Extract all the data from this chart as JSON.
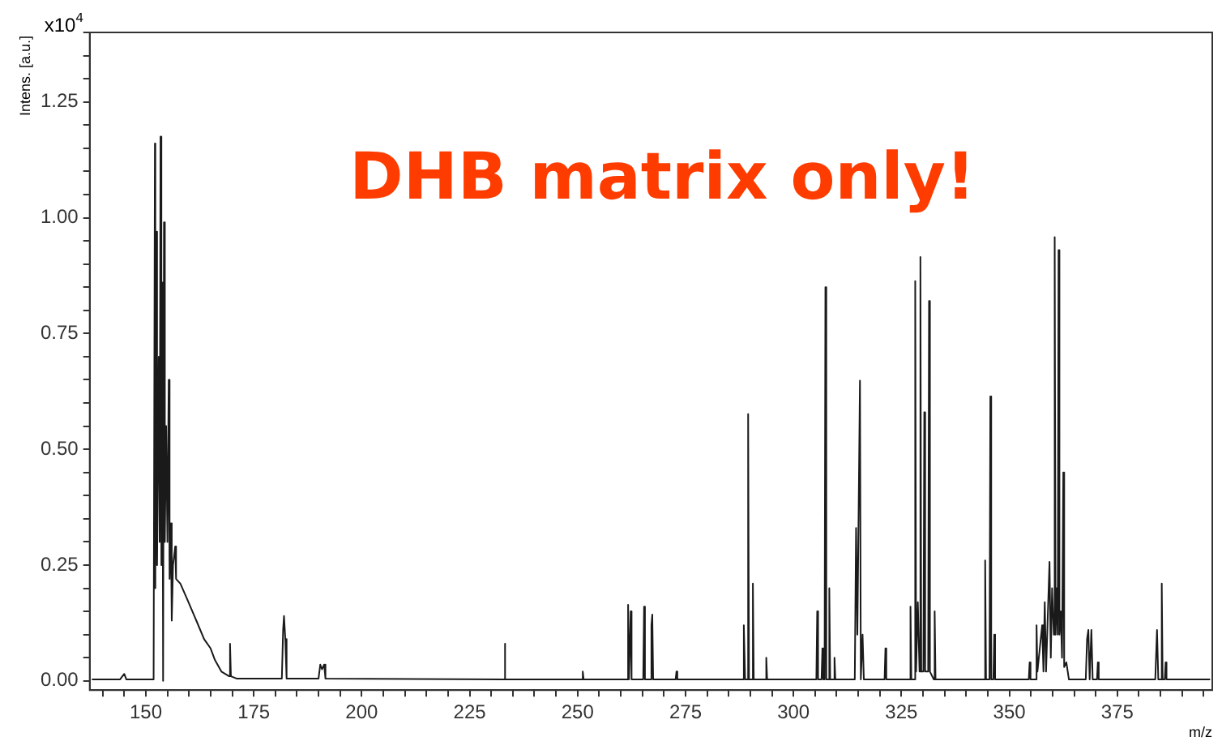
{
  "chart_data": {
    "type": "line",
    "xlabel": "m/z",
    "ylabel": "Intens. [a.u.]",
    "annotations": [
      "DHB matrix only!",
      "x10$^{4}$"
    ],
    "xlim": [
      137,
      397
    ],
    "ylim": [
      -0.02,
      1.4
    ],
    "xticks": [
      {
        "value": 140,
        "label": null
      },
      {
        "value": 145,
        "label": null
      },
      150,
      {
        "value": 155,
        "label": null
      },
      {
        "value": 160,
        "label": null
      },
      {
        "value": 165,
        "label": null
      },
      {
        "value": 170,
        "label": null
      },
      175,
      {
        "value": 180,
        "label": null
      },
      {
        "value": 185,
        "label": null
      },
      {
        "value": 190,
        "label": null
      },
      {
        "value": 195,
        "label": null
      },
      200,
      {
        "value": 205,
        "label": null
      },
      {
        "value": 210,
        "label": null
      },
      {
        "value": 215,
        "label": null
      },
      {
        "value": 220,
        "label": null
      },
      225,
      {
        "value": 230,
        "label": null
      },
      {
        "value": 235,
        "label": null
      },
      {
        "value": 240,
        "label": null
      },
      {
        "value": 245,
        "label": null
      },
      250,
      {
        "value": 255,
        "label": null
      },
      {
        "value": 260,
        "label": null
      },
      {
        "value": 265,
        "label": null
      },
      {
        "value": 270,
        "label": null
      },
      275,
      {
        "value": 280,
        "label": null
      },
      {
        "value": 285,
        "label": null
      },
      {
        "value": 290,
        "label": null
      },
      {
        "value": 295,
        "label": null
      },
      300,
      {
        "value": 305,
        "label": null
      },
      {
        "value": 310,
        "label": null
      },
      {
        "value": 315,
        "label": null
      },
      {
        "value": 320,
        "label": null
      },
      325,
      {
        "value": 330,
        "label": null
      },
      {
        "value": 335,
        "label": null
      },
      {
        "value": 340,
        "label": null
      },
      {
        "value": 345,
        "label": null
      },
      350,
      {
        "value": 355,
        "label": null
      },
      {
        "value": 360,
        "label": null
      },
      {
        "value": 365,
        "label": null
      },
      {
        "value": 370,
        "label": null
      },
      375,
      {
        "value": 380,
        "label": null
      },
      {
        "value": 385,
        "label": null
      },
      {
        "value": 390,
        "label": null
      },
      {
        "value": 395,
        "label": null
      }
    ],
    "yticks": [
      {
        "value": 0,
        "label": "0.00"
      },
      {
        "value": 0.05,
        "label": null
      },
      {
        "value": 0.1,
        "label": null
      },
      {
        "value": 0.15,
        "label": null
      },
      {
        "value": 0.2,
        "label": null
      },
      {
        "value": 0.25,
        "label": "0.25"
      },
      {
        "value": 0.3,
        "label": null
      },
      {
        "value": 0.35,
        "label": null
      },
      {
        "value": 0.4,
        "label": null
      },
      {
        "value": 0.45,
        "label": null
      },
      {
        "value": 0.5,
        "label": "0.50"
      },
      {
        "value": 0.55,
        "label": null
      },
      {
        "value": 0.6,
        "label": null
      },
      {
        "value": 0.65,
        "label": null
      },
      {
        "value": 0.7,
        "label": null
      },
      {
        "value": 0.75,
        "label": "0.75"
      },
      {
        "value": 0.8,
        "label": null
      },
      {
        "value": 0.85,
        "label": null
      },
      {
        "value": 0.9,
        "label": null
      },
      {
        "value": 0.95,
        "label": null
      },
      {
        "value": 1.0,
        "label": "1.00"
      },
      {
        "value": 1.05,
        "label": null
      },
      {
        "value": 1.1,
        "label": null
      },
      {
        "value": 1.15,
        "label": null
      },
      {
        "value": 1.2,
        "label": null
      },
      {
        "value": 1.25,
        "label": "1.25"
      },
      {
        "value": 1.3,
        "label": null
      },
      {
        "value": 1.35,
        "label": null
      },
      {
        "value": 1.4,
        "label": null
      }
    ],
    "marker": "none",
    "line_style": "solid",
    "series": [
      {
        "color": "#1a1a1a",
        "x": [
          137.5,
          144,
          145,
          145.5,
          151.8,
          152.1,
          152.2,
          152.3,
          152.6,
          153.0,
          153.2,
          153.4,
          153.6,
          153.8,
          154.0,
          154.2,
          154.4,
          154.7,
          155.0,
          155.3,
          155.5,
          155.8,
          156.0,
          156.3,
          156.8,
          157.0,
          158,
          159.4,
          161.7,
          163.5,
          165,
          166,
          167.5,
          169.3,
          169.5,
          169.7,
          171,
          181.5,
          181.8,
          182,
          182.3,
          182.6,
          190,
          190.4,
          190.8,
          191.3,
          191.6,
          233,
          233.1,
          233.3,
          251,
          251.2,
          251.4,
          261.5,
          261.7,
          261.9,
          262.1,
          262.3,
          262.5,
          265.2,
          265.4,
          265.6,
          267.0,
          267.1,
          267.3,
          267.5,
          272.7,
          272.9,
          273.1,
          288.3,
          288.5,
          288.8,
          289.3,
          289.5,
          289.7,
          290.4,
          290.6,
          290.8,
          293.5,
          293.7,
          293.9,
          305.3,
          305.5,
          305.7,
          306.5,
          306.7,
          306.9,
          307.2,
          307.4,
          307.6,
          308.1,
          308.3,
          308.5,
          309.3,
          309.5,
          309.7,
          314.2,
          314.5,
          314.8,
          315.4,
          315.6,
          316,
          316.3,
          321.1,
          321.3,
          321.5,
          326.9,
          327.1,
          327.3,
          328.0,
          328.2,
          328.4,
          328.8,
          329.2,
          329.4,
          329.6,
          330.1,
          330.3,
          330.5,
          331.2,
          331.4,
          331.6,
          332.5,
          332.7,
          332.9,
          344.2,
          344.4,
          344.6,
          345.4,
          345.6,
          345.8,
          346.3,
          346.5,
          346.7,
          354.5,
          354.7,
          354.9,
          356.1,
          356.3,
          356.5,
          357.6,
          357.9,
          358.2,
          358.5,
          359.3,
          359.6,
          359.9,
          360.3,
          360.5,
          360.7,
          361.0,
          361.2,
          361.4,
          361.6,
          361.9,
          362.2,
          362.5,
          362.7,
          363.2,
          363.8,
          367.7,
          368,
          368.3,
          368.6,
          369,
          369.3,
          370.3,
          370.5,
          370.7,
          383.8,
          384.2,
          384.5,
          385.1,
          385.3,
          385.5,
          386,
          386.2,
          386.4,
          396.5
        ],
        "values": [
          0.003,
          0.003,
          0.015,
          0.003,
          0.003,
          1.16,
          0.2,
          0.97,
          0.25,
          0.7,
          0.3,
          1.175,
          0.25,
          0.86,
          0.0,
          0.99,
          0.3,
          0.55,
          0.3,
          0.65,
          0.22,
          0.34,
          0.13,
          0.25,
          0.29,
          0.22,
          0.21,
          0.18,
          0.13,
          0.09,
          0.07,
          0.045,
          0.02,
          0.01,
          0.08,
          0.01,
          0.005,
          0.005,
          0.11,
          0.14,
          0.09,
          0.005,
          0.005,
          0.035,
          0.025,
          0.035,
          0.005,
          0.003,
          0.08,
          0.003,
          0.003,
          0.02,
          0.003,
          0.003,
          0.164,
          0.003,
          0.003,
          0.15,
          0.003,
          0.003,
          0.16,
          0.003,
          0.003,
          0.12,
          0.143,
          0.003,
          0.003,
          0.02,
          0.003,
          0.003,
          0.12,
          0.003,
          0.003,
          0.576,
          0.003,
          0.003,
          0.21,
          0.003,
          0.003,
          0.05,
          0.003,
          0.003,
          0.15,
          0.003,
          0.003,
          0.07,
          0.003,
          0.003,
          0.85,
          0.003,
          0.003,
          0.2,
          0.003,
          0.003,
          0.05,
          0.003,
          0.003,
          0.33,
          0.1,
          0.648,
          0.003,
          0.1,
          0.003,
          0.003,
          0.07,
          0.003,
          0.003,
          0.16,
          0.003,
          0.003,
          0.863,
          0.02,
          0.17,
          0.02,
          0.915,
          0.02,
          0.02,
          0.58,
          0.02,
          0.02,
          0.82,
          0.02,
          0.003,
          0.15,
          0.003,
          0.003,
          0.26,
          0.003,
          0.003,
          0.614,
          0.003,
          0.003,
          0.1,
          0.003,
          0.003,
          0.04,
          0.003,
          0.003,
          0.12,
          0.02,
          0.12,
          0.02,
          0.17,
          0.02,
          0.257,
          0.05,
          0.2,
          0.1,
          0.958,
          0.1,
          0.2,
          0.1,
          0.93,
          0.1,
          0.15,
          0.05,
          0.45,
          0.03,
          0.04,
          0.003,
          0.003,
          0.09,
          0.11,
          0.003,
          0.11,
          0.003,
          0.003,
          0.04,
          0.003,
          0.003,
          0.11,
          0.003,
          0.003,
          0.21,
          0.003,
          0.003,
          0.04,
          0.003,
          0.003
        ]
      }
    ]
  }
}
